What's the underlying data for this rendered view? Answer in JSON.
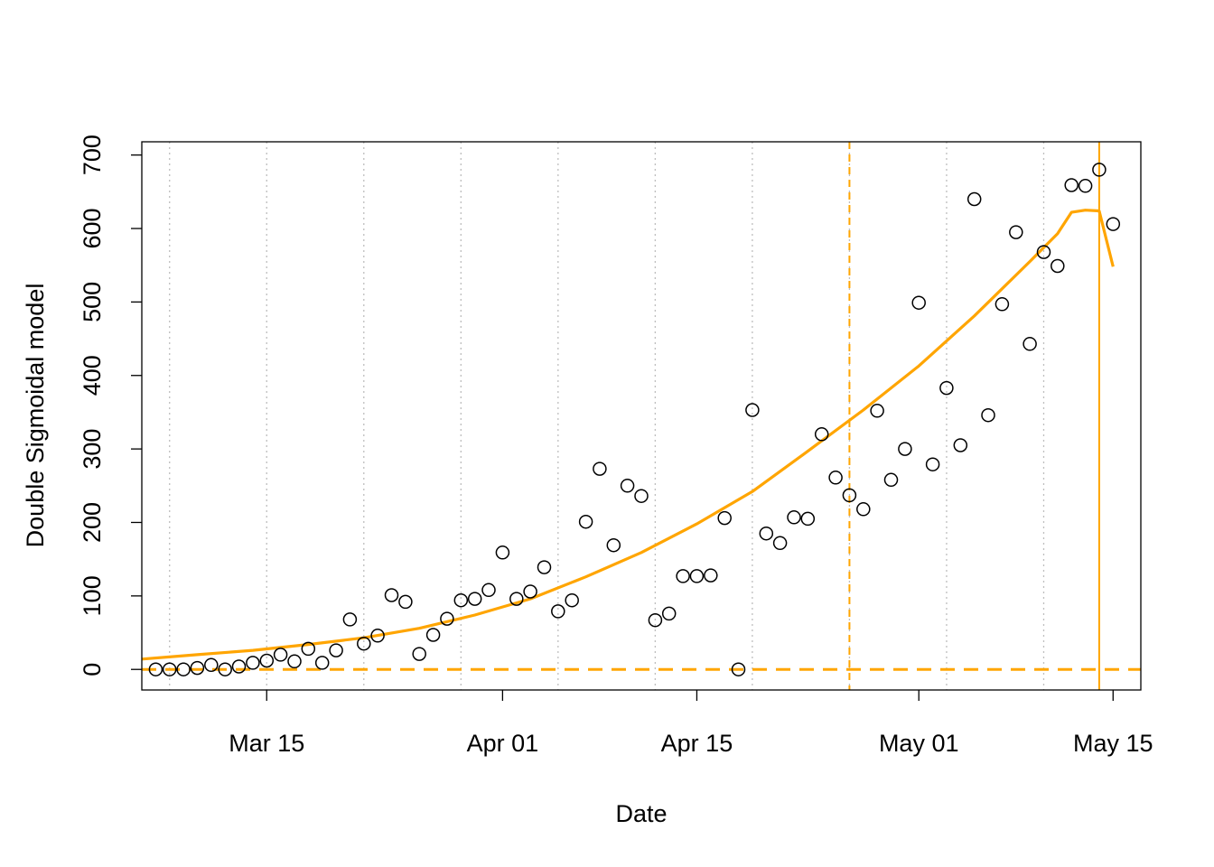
{
  "chart_data": {
    "type": "scatter",
    "title": "",
    "xlabel": "Date",
    "ylabel": "Double Sigmoidal model",
    "x_axis": {
      "type": "date",
      "ticks": [
        "2020-03-15",
        "2020-04-01",
        "2020-04-15",
        "2020-05-01",
        "2020-05-15"
      ],
      "tick_labels": [
        "Mar 15",
        "Apr 01",
        "Apr 15",
        "May 01",
        "May 15"
      ],
      "xlim": [
        "2020-03-06",
        "2020-05-17"
      ]
    },
    "y_axis": {
      "ticks": [
        0,
        100,
        200,
        300,
        400,
        500,
        600,
        700
      ],
      "tick_labels": [
        "0",
        "100",
        "200",
        "300",
        "400",
        "500",
        "600",
        "700"
      ],
      "ylim": [
        -28,
        718
      ]
    },
    "weekly_gridlines": [
      "2020-03-08",
      "2020-03-15",
      "2020-03-22",
      "2020-03-29",
      "2020-04-05",
      "2020-04-12",
      "2020-04-19",
      "2020-04-26",
      "2020-05-03",
      "2020-05-10"
    ],
    "grid": true,
    "colors": {
      "fit": "#FFA500",
      "points": "#000000",
      "grid": "#BEBEBE"
    },
    "series": [
      {
        "type": "scatter",
        "x": [
          "2020-03-07",
          "2020-03-08",
          "2020-03-09",
          "2020-03-10",
          "2020-03-11",
          "2020-03-12",
          "2020-03-13",
          "2020-03-14",
          "2020-03-15",
          "2020-03-16",
          "2020-03-17",
          "2020-03-18",
          "2020-03-19",
          "2020-03-20",
          "2020-03-21",
          "2020-03-22",
          "2020-03-23",
          "2020-03-24",
          "2020-03-25",
          "2020-03-26",
          "2020-03-27",
          "2020-03-28",
          "2020-03-29",
          "2020-03-30",
          "2020-03-31",
          "2020-04-01",
          "2020-04-02",
          "2020-04-03",
          "2020-04-04",
          "2020-04-05",
          "2020-04-06",
          "2020-04-07",
          "2020-04-08",
          "2020-04-09",
          "2020-04-10",
          "2020-04-11",
          "2020-04-12",
          "2020-04-13",
          "2020-04-14",
          "2020-04-15",
          "2020-04-16",
          "2020-04-17",
          "2020-04-18",
          "2020-04-19",
          "2020-04-20",
          "2020-04-21",
          "2020-04-22",
          "2020-04-23",
          "2020-04-24",
          "2020-04-25",
          "2020-04-26",
          "2020-04-27",
          "2020-04-28",
          "2020-04-29",
          "2020-04-30",
          "2020-05-01",
          "2020-05-02",
          "2020-05-03",
          "2020-05-04",
          "2020-05-05",
          "2020-05-06",
          "2020-05-07",
          "2020-05-08",
          "2020-05-09",
          "2020-05-10",
          "2020-05-11",
          "2020-05-12",
          "2020-05-13",
          "2020-05-14",
          "2020-05-15"
        ],
        "y": [
          0,
          0,
          0,
          2,
          6,
          0,
          4,
          9,
          12,
          20,
          11,
          28,
          9,
          26,
          68,
          35,
          46,
          101,
          92,
          21,
          47,
          69,
          94,
          96,
          108,
          159,
          96,
          106,
          139,
          79,
          94,
          201,
          273,
          169,
          250,
          236,
          67,
          76,
          127,
          127,
          128,
          206,
          0,
          353,
          185,
          172,
          207,
          205,
          320,
          261,
          237,
          218,
          352,
          258,
          300,
          499,
          279,
          383,
          305,
          640,
          346,
          497,
          595,
          443,
          568,
          549,
          659,
          658,
          680,
          606
        ]
      },
      {
        "type": "line",
        "name": "",
        "x": [
          "2020-03-06",
          "2020-03-10",
          "2020-03-14",
          "2020-03-18",
          "2020-03-22",
          "2020-03-26",
          "2020-03-30",
          "2020-04-03",
          "2020-04-07",
          "2020-04-11",
          "2020-04-15",
          "2020-04-19",
          "2020-04-23",
          "2020-04-27",
          "2020-05-01",
          "2020-05-05",
          "2020-05-09",
          "2020-05-11",
          "2020-05-12",
          "2020-05-13",
          "2020-05-14",
          "2020-05-15"
        ],
        "y": [
          14,
          20,
          26,
          34,
          43,
          56,
          74,
          96,
          126,
          159,
          198,
          242,
          297,
          353,
          413,
          481,
          555,
          593,
          622,
          625,
          624,
          548
        ]
      }
    ],
    "reference_lines": {
      "horizontal_dashed_y": 0,
      "vertical_dashed_x": "2020-04-26",
      "vertical_solid_x": "2020-05-14"
    }
  }
}
